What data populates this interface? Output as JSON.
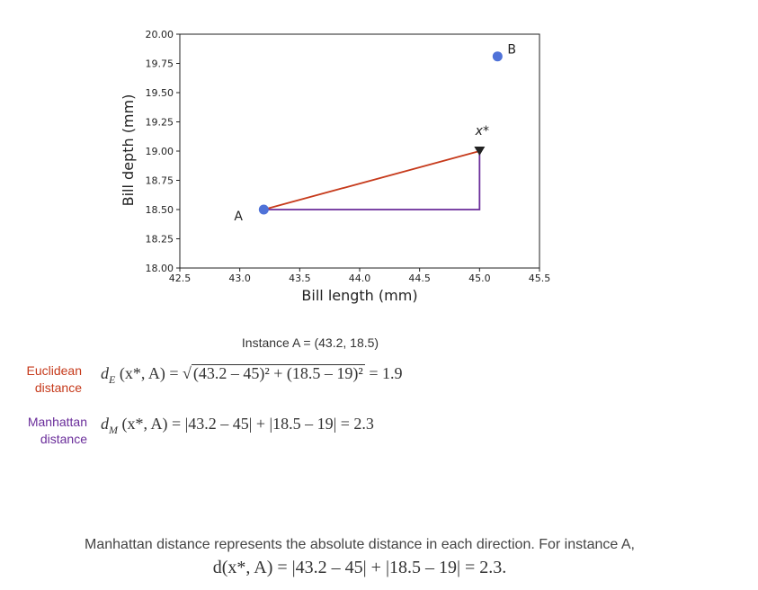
{
  "chart_data": {
    "type": "scatter",
    "xlabel": "Bill length (mm)",
    "ylabel": "Bill depth (mm)",
    "xlim": [
      42.5,
      45.5
    ],
    "ylim": [
      18.0,
      20.0
    ],
    "x_ticks": [
      "42.5",
      "43.0",
      "43.5",
      "44.0",
      "44.5",
      "45.0",
      "45.5"
    ],
    "y_ticks": [
      "18.00",
      "18.25",
      "18.50",
      "18.75",
      "19.00",
      "19.25",
      "19.50",
      "19.75",
      "20.00"
    ],
    "points": [
      {
        "label": "A",
        "x": 43.2,
        "y": 18.5,
        "color": "#4f72d8"
      },
      {
        "label": "B",
        "x": 45.15,
        "y": 19.81,
        "color": "#4f72d8"
      }
    ],
    "query_point": {
      "label": "x*",
      "x": 45.0,
      "y": 19.0,
      "color": "#222222"
    },
    "euclidean_line_color": "#c63a1b",
    "manhattan_line_color": "#6a2d9a"
  },
  "caption": "Instance A = (43.2, 18.5)",
  "euclidean": {
    "label_line1": "Euclidean",
    "label_line2": "distance",
    "color": "#c63a1b",
    "lhs": "d",
    "lhs_sub": "E",
    "args": "(x*, A) =",
    "sqrt_content": "(43.2 – 45)² + (18.5 – 19)²",
    "result": "= 1.9"
  },
  "manhattan": {
    "label_line1": "Manhattan",
    "label_line2": "distance",
    "color": "#6a2d9a",
    "lhs": "d",
    "lhs_sub": "M",
    "args": "(x*, A) =",
    "expr": "|43.2 – 45| + |18.5 – 19| = 2.3"
  },
  "footer": {
    "text": "Manhattan distance represents the absolute distance in each direction. For instance A,",
    "math": "d(x*, A) = |43.2 – 45| + |18.5 – 19| = 2.3."
  }
}
